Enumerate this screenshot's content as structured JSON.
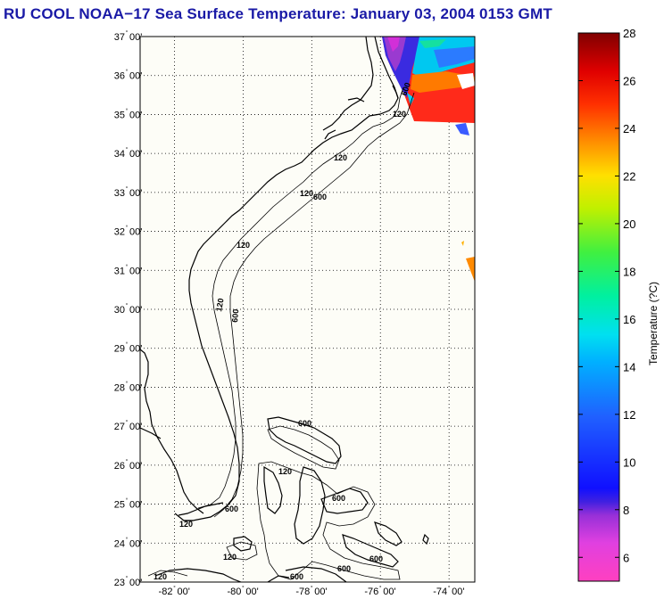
{
  "title": "RU COOL  NOAA−17  Sea Surface Temperature:  January 03, 2004 0153 GMT",
  "map": {
    "lat_labels": [
      "37",
      "36",
      "35",
      "34",
      "33",
      "32",
      "31",
      "30",
      "29",
      "28",
      "27",
      "26",
      "25",
      "24",
      "23"
    ],
    "lon_labels": [
      "-82",
      "-80",
      "-78",
      "-76",
      "-74"
    ],
    "minute_label": "00'",
    "lat_range": [
      23,
      37
    ],
    "lon_range": [
      -83,
      -73.25
    ],
    "contour_labels": [
      "120",
      "600"
    ]
  },
  "colorbar": {
    "label": "Temperature (?C)",
    "ticks": [
      "28",
      "26",
      "24",
      "22",
      "20",
      "18",
      "16",
      "14",
      "12",
      "10",
      "8",
      "6"
    ],
    "range": [
      5,
      28
    ]
  },
  "colors": {
    "title": "#1a1aa6",
    "land": "#fdfdf7"
  }
}
